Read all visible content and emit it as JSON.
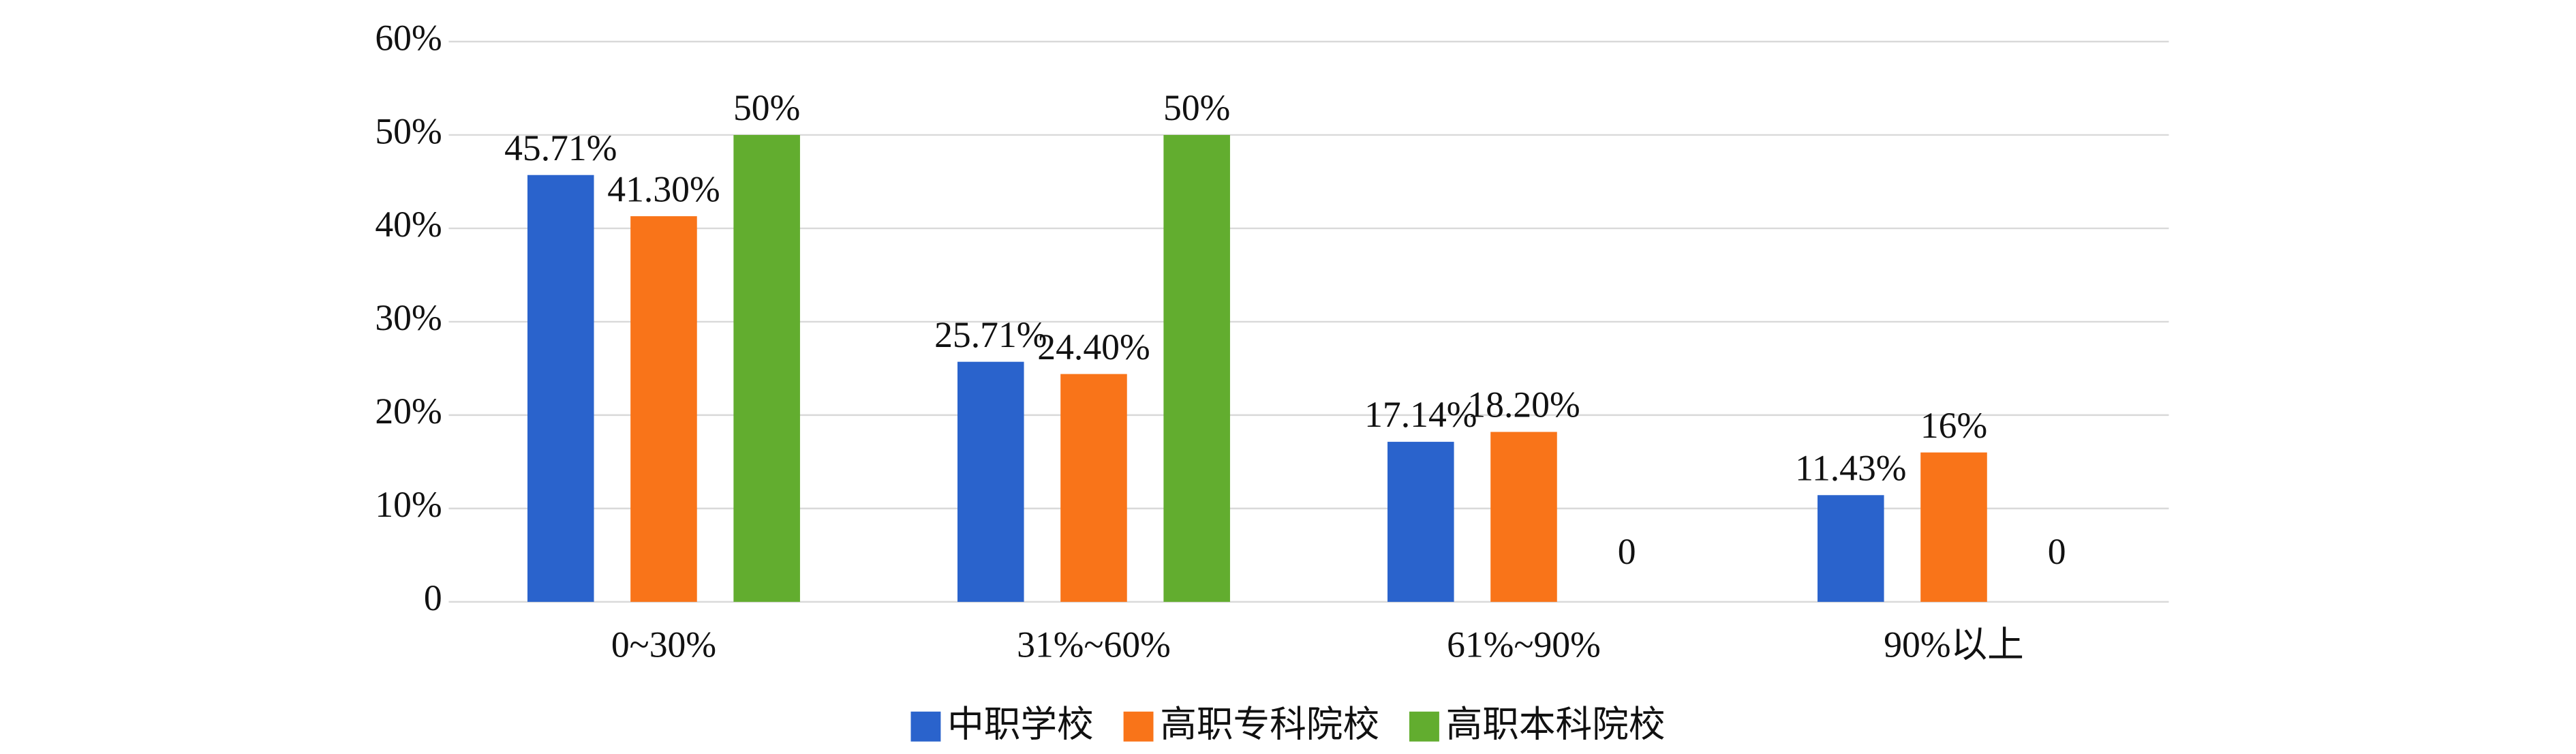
{
  "chart_data": {
    "type": "bar",
    "categories": [
      "0~30%",
      "31%~60%",
      "61%~90%",
      "90%以上"
    ],
    "series": [
      {
        "name": "中职学校",
        "color": "#2a63cc",
        "values": [
          45.71,
          25.71,
          17.14,
          11.43
        ],
        "value_labels": [
          "45.71%",
          "25.71%",
          "17.14%",
          "11.43%"
        ]
      },
      {
        "name": "高职专科院校",
        "color": "#f97419",
        "values": [
          41.3,
          24.4,
          18.2,
          16
        ],
        "value_labels": [
          "41.30%",
          "24.40%",
          "18.20%",
          "16%"
        ]
      },
      {
        "name": "高职本科院校",
        "color": "#62ad2f",
        "values": [
          50,
          50,
          0,
          0
        ],
        "value_labels": [
          "50%",
          "50%",
          "0",
          "0"
        ]
      }
    ],
    "ylim": [
      0,
      60
    ],
    "yticks": [
      0,
      {
        "value": 10,
        "label": "10%"
      },
      {
        "value": 20,
        "label": "20%"
      },
      {
        "value": 30,
        "label": "30%"
      },
      {
        "value": 40,
        "label": "40%"
      },
      {
        "value": 50,
        "label": "50%"
      },
      {
        "value": 60,
        "label": "60%"
      }
    ],
    "grid": true,
    "legend": "bottom"
  }
}
